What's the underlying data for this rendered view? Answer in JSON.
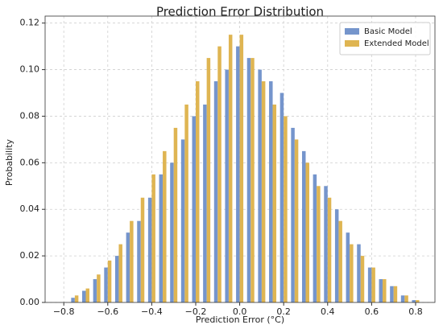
{
  "chart_data": {
    "type": "grouped-histogram",
    "title": "Prediction Error Distribution",
    "x_label": "Prediction Error (°C)",
    "y_label": "Probability",
    "x": [
      -0.75,
      -0.7,
      -0.65,
      -0.6,
      -0.55,
      -0.5,
      -0.45,
      -0.4,
      -0.35,
      -0.3,
      -0.25,
      -0.2,
      -0.15,
      -0.1,
      -0.05,
      0.0,
      0.05,
      0.1,
      0.15,
      0.2,
      0.25,
      0.3,
      0.35,
      0.4,
      0.45,
      0.5,
      0.55,
      0.6,
      0.65,
      0.7,
      0.75,
      0.8
    ],
    "series": [
      {
        "name": "Basic Model",
        "color": "#7595cc",
        "values": [
          0.002,
          0.005,
          0.01,
          0.015,
          0.02,
          0.03,
          0.035,
          0.045,
          0.055,
          0.06,
          0.07,
          0.08,
          0.085,
          0.095,
          0.1,
          0.11,
          0.105,
          0.1,
          0.095,
          0.09,
          0.075,
          0.065,
          0.055,
          0.05,
          0.04,
          0.03,
          0.025,
          0.015,
          0.01,
          0.007,
          0.003,
          0.001
        ]
      },
      {
        "name": "Extended Model",
        "color": "#dfb552",
        "values": [
          0.003,
          0.006,
          0.012,
          0.018,
          0.025,
          0.035,
          0.045,
          0.055,
          0.065,
          0.075,
          0.085,
          0.095,
          0.105,
          0.11,
          0.115,
          0.115,
          0.105,
          0.095,
          0.085,
          0.08,
          0.07,
          0.06,
          0.05,
          0.045,
          0.035,
          0.025,
          0.02,
          0.015,
          0.01,
          0.007,
          0.003,
          0.001
        ]
      }
    ],
    "xlim": [
      -0.885,
      0.888
    ],
    "ylim": [
      0,
      0.123
    ],
    "xticks": [
      {
        "value": -0.8,
        "label": "−0.8"
      },
      {
        "value": -0.6,
        "label": "−0.6"
      },
      {
        "value": -0.4,
        "label": "−0.4"
      },
      {
        "value": -0.2,
        "label": "−0.2"
      },
      {
        "value": 0.0,
        "label": "0.0"
      },
      0.2,
      0.4,
      0.6,
      0.8
    ],
    "yticks": [
      {
        "value": 0,
        "label": "0.00"
      },
      0.02,
      0.04,
      0.06,
      0.08,
      {
        "value": 0.1,
        "label": "0.10"
      },
      0.12
    ],
    "grid": true,
    "legend": "upper-right"
  }
}
